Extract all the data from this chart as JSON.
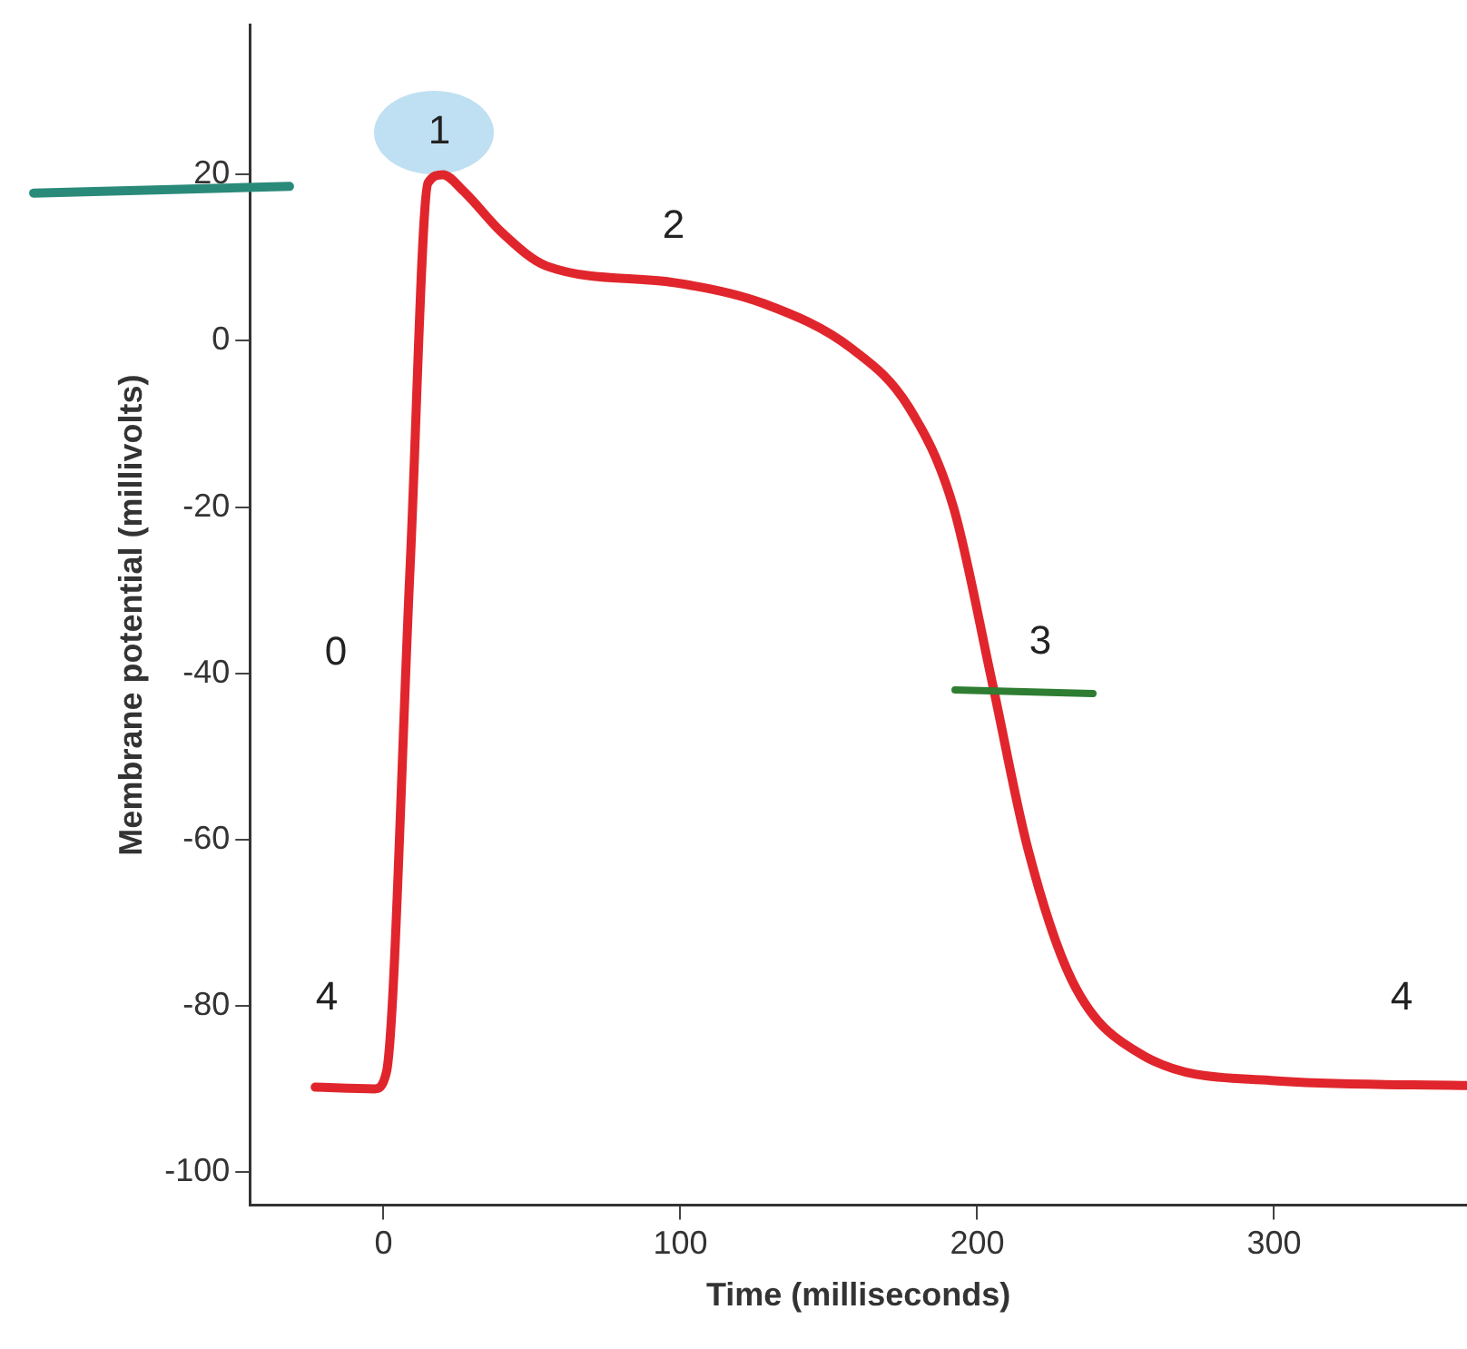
{
  "chart_data": {
    "type": "line",
    "xlabel": "Time (milliseconds)",
    "ylabel": "Membrane potential (millivolts)",
    "x": [
      -23,
      -3,
      1,
      9,
      15,
      20,
      27,
      40,
      55,
      98,
      128,
      158,
      177,
      192,
      205,
      217,
      232,
      256,
      299,
      365
    ],
    "series": [
      {
        "color": "#e0262c",
        "values": [
          -89.8,
          -90,
          -88,
          -27,
          19,
          20,
          18,
          13,
          9,
          7,
          4.5,
          -1,
          -8,
          -20,
          -41,
          -61,
          -77,
          -86,
          -89,
          -89.6
        ]
      }
    ],
    "xlim": [
      -45,
      365
    ],
    "ylim": [
      -104,
      38
    ],
    "xticks": [
      0,
      100,
      200,
      300
    ],
    "yticks": [
      -100,
      -80,
      -60,
      -40,
      -20,
      0,
      20
    ],
    "grid": false,
    "legend": false,
    "marker": "none",
    "line_style": "solid",
    "annotations": [
      "0",
      "1",
      "2",
      "3",
      "4",
      "4"
    ]
  }
}
